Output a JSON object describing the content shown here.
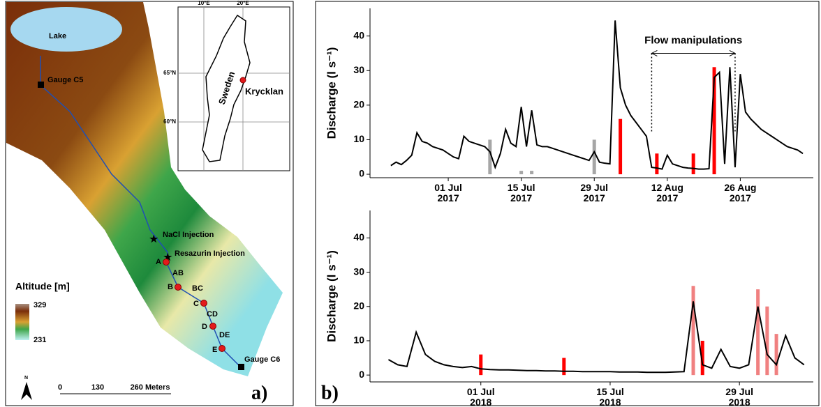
{
  "map": {
    "panel_label": "a)",
    "lake": "Lake",
    "gauges": [
      "Gauge C5",
      "Gauge C6"
    ],
    "injections": [
      "NaCl Injection",
      "Resazurin Injection"
    ],
    "sites": [
      "A",
      "B",
      "C",
      "D",
      "E"
    ],
    "reaches": [
      "AB",
      "BC",
      "CD",
      "DE"
    ],
    "legend": {
      "title": "Altitude [m]",
      "max": 329,
      "min": 231
    },
    "scale": [
      "0",
      "130",
      "260 Meters"
    ],
    "north": "N",
    "inset": {
      "lon": [
        "10°E",
        "20°E"
      ],
      "lat": [
        "65°N",
        "60°N"
      ],
      "country": "Sweden",
      "site": "Krycklan"
    }
  },
  "panel_b_label": "b)",
  "chart_data": [
    {
      "type": "line",
      "y_label": "Discharge (l s⁻¹)",
      "color": "#000000",
      "xlim": [
        "2017-06-16",
        "2017-09-09"
      ],
      "ylim": [
        -1,
        48
      ],
      "xticks": [
        {
          "value": "2017-07-01",
          "label": "01 Jul 2017"
        },
        {
          "value": "2017-07-15",
          "label": "15 Jul 2017"
        },
        {
          "value": "2017-07-29",
          "label": "29 Jul 2017"
        },
        {
          "value": "2017-08-12",
          "label": "12 Aug 2017"
        },
        {
          "value": "2017-08-26",
          "label": "26 Aug 2017"
        }
      ],
      "yticks": [
        0,
        10,
        20,
        30,
        40
      ],
      "x": [
        "2017-06-20",
        "2017-06-21",
        "2017-06-22",
        "2017-06-23",
        "2017-06-24",
        "2017-06-25",
        "2017-06-26",
        "2017-06-27",
        "2017-06-28",
        "2017-06-29",
        "2017-06-30",
        "2017-07-01",
        "2017-07-02",
        "2017-07-03",
        "2017-07-04",
        "2017-07-05",
        "2017-07-06",
        "2017-07-07",
        "2017-07-08",
        "2017-07-09",
        "2017-07-10",
        "2017-07-11",
        "2017-07-12",
        "2017-07-13",
        "2017-07-14",
        "2017-07-15",
        "2017-07-16",
        "2017-07-17",
        "2017-07-18",
        "2017-07-19",
        "2017-07-20",
        "2017-07-21",
        "2017-07-22",
        "2017-07-23",
        "2017-07-24",
        "2017-07-25",
        "2017-07-26",
        "2017-07-27",
        "2017-07-28",
        "2017-07-29",
        "2017-07-30",
        "2017-07-31",
        "2017-08-01",
        "2017-08-02",
        "2017-08-03",
        "2017-08-04",
        "2017-08-05",
        "2017-08-06",
        "2017-08-07",
        "2017-08-08",
        "2017-08-09",
        "2017-08-10",
        "2017-08-11",
        "2017-08-12",
        "2017-08-13",
        "2017-08-14",
        "2017-08-15",
        "2017-08-16",
        "2017-08-17",
        "2017-08-18",
        "2017-08-19",
        "2017-08-20",
        "2017-08-21",
        "2017-08-22",
        "2017-08-23",
        "2017-08-24",
        "2017-08-25",
        "2017-08-26",
        "2017-08-27",
        "2017-08-28",
        "2017-08-29",
        "2017-08-30",
        "2017-08-31",
        "2017-09-01",
        "2017-09-02",
        "2017-09-03",
        "2017-09-04",
        "2017-09-05",
        "2017-09-06",
        "2017-09-07"
      ],
      "values": [
        2.5,
        3.5,
        2.8,
        4,
        5.5,
        12,
        9.5,
        9,
        8,
        7.5,
        7,
        6,
        5,
        4.5,
        11,
        9.5,
        9,
        8.5,
        8,
        6.5,
        2,
        6,
        13,
        9,
        8,
        19.5,
        8,
        18.5,
        8.5,
        8,
        8,
        7.5,
        7,
        6.5,
        6,
        5.5,
        5,
        4.5,
        4,
        6.5,
        3.5,
        3.2,
        3,
        44.5,
        25,
        20,
        17,
        15,
        13,
        11,
        2,
        1.8,
        1.5,
        5.5,
        3,
        2.5,
        2,
        1.8,
        1.7,
        1.5,
        1.5,
        1.6,
        28,
        29.5,
        3,
        31,
        2,
        29,
        18,
        16,
        14.5,
        13,
        12,
        11,
        10,
        9,
        8,
        7.5,
        7,
        6
      ],
      "events": [
        {
          "x": "2017-07-09",
          "value": 10,
          "color": "#a6a6a6"
        },
        {
          "x": "2017-07-15",
          "value": 1,
          "color": "#a6a6a6"
        },
        {
          "x": "2017-07-17",
          "value": 1,
          "color": "#a6a6a6"
        },
        {
          "x": "2017-07-29",
          "value": 10,
          "color": "#a6a6a6"
        },
        {
          "x": "2017-08-03",
          "value": 16,
          "color": "#ff0000"
        },
        {
          "x": "2017-08-10",
          "value": 6,
          "color": "#ff0000"
        },
        {
          "x": "2017-08-17",
          "value": 6,
          "color": "#ff0000"
        },
        {
          "x": "2017-08-21",
          "value": 31,
          "color": "#ff0000"
        }
      ],
      "annotation": {
        "text": "Flow manipulations",
        "x": [
          "2017-08-09",
          "2017-08-25"
        ],
        "y": 35
      }
    },
    {
      "type": "line",
      "y_label": "Discharge (l s⁻¹)",
      "color": "#000000",
      "xlim": [
        "2018-06-19",
        "2018-08-06"
      ],
      "ylim": [
        -2,
        48
      ],
      "xticks": [
        {
          "value": "2018-07-01",
          "label": "01 Jul 2018"
        },
        {
          "value": "2018-07-15",
          "label": "15 Jul 2018"
        },
        {
          "value": "2018-07-29",
          "label": "29 Jul 2018"
        }
      ],
      "yticks": [
        0,
        10,
        20,
        30,
        40
      ],
      "x": [
        "2018-06-21",
        "2018-06-22",
        "2018-06-23",
        "2018-06-24",
        "2018-06-25",
        "2018-06-26",
        "2018-06-27",
        "2018-06-28",
        "2018-06-29",
        "2018-06-30",
        "2018-07-01",
        "2018-07-02",
        "2018-07-03",
        "2018-07-04",
        "2018-07-05",
        "2018-07-06",
        "2018-07-07",
        "2018-07-08",
        "2018-07-09",
        "2018-07-10",
        "2018-07-11",
        "2018-07-12",
        "2018-07-13",
        "2018-07-14",
        "2018-07-15",
        "2018-07-16",
        "2018-07-17",
        "2018-07-18",
        "2018-07-19",
        "2018-07-20",
        "2018-07-21",
        "2018-07-22",
        "2018-07-23",
        "2018-07-24",
        "2018-07-25",
        "2018-07-26",
        "2018-07-27",
        "2018-07-28",
        "2018-07-29",
        "2018-07-30",
        "2018-07-31",
        "2018-08-01",
        "2018-08-02",
        "2018-08-03",
        "2018-08-04",
        "2018-08-05"
      ],
      "values": [
        4.5,
        3,
        2.5,
        12.5,
        6,
        4,
        3,
        2.5,
        2.2,
        2.5,
        1.8,
        1.6,
        1.5,
        1.5,
        1.4,
        1.3,
        1.3,
        1.2,
        1.2,
        1.1,
        1.1,
        1,
        1,
        1,
        1,
        0.9,
        0.9,
        0.9,
        0.8,
        0.8,
        0.8,
        0.9,
        1,
        21.5,
        3,
        2,
        7.5,
        2.5,
        2,
        3,
        20,
        6,
        3,
        11.5,
        5,
        3
      ],
      "events": [
        {
          "x": "2018-07-01",
          "value": 6,
          "color": "#ff0000"
        },
        {
          "x": "2018-07-10",
          "value": 5,
          "color": "#ff0000"
        },
        {
          "x": "2018-07-24",
          "value": 26,
          "color": "#f08080"
        },
        {
          "x": "2018-07-25",
          "value": 10,
          "color": "#ff0000"
        },
        {
          "x": "2018-07-31",
          "value": 25,
          "color": "#f08080"
        },
        {
          "x": "2018-08-01",
          "value": 20,
          "color": "#f08080"
        },
        {
          "x": "2018-08-02",
          "value": 12,
          "color": "#f08080"
        }
      ]
    }
  ]
}
